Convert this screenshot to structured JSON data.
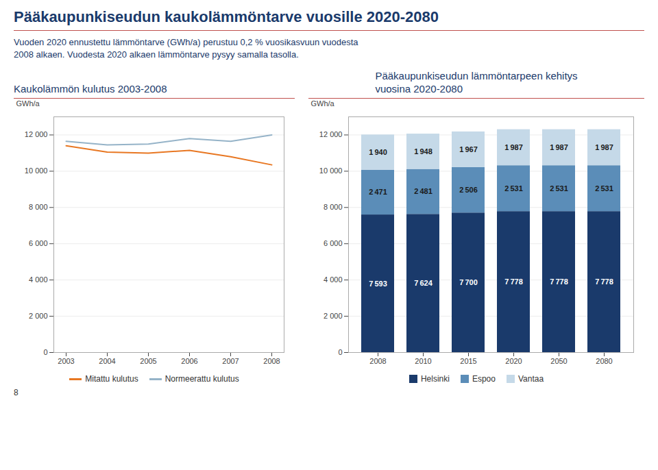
{
  "title": "Pääkaupunkiseudun kaukolämmöntarve vuosille 2020-2080",
  "subtitle": "Vuoden 2020 ennustettu lämmöntarve (GWh/a) perustuu 0,2 % vuosikasvuun vuodesta\n2008 alkaen. Vuodesta 2020 alkaen lämmöntarve pysyy samalla tasolla.",
  "annotations": [
    "8"
  ],
  "chart_data": [
    {
      "type": "line",
      "title": "Kaukolämmön kulutus 2003-2008",
      "ylabel": "GWh/a",
      "x": [
        2003,
        2004,
        2005,
        2006,
        2007,
        2008
      ],
      "xlim": [
        2002.7,
        2008.3
      ],
      "xticks": [
        2003,
        2004,
        2005,
        2006,
        2007,
        2008
      ],
      "ylim": [
        0,
        13000
      ],
      "yticks": [
        0,
        {
          "value": 2000,
          "label": "2 000"
        },
        {
          "value": 4000,
          "label": "4 000"
        },
        {
          "value": 6000,
          "label": "6 000"
        },
        {
          "value": 8000,
          "label": "8 000"
        },
        {
          "value": 10000,
          "label": "10 000"
        },
        {
          "value": 12000,
          "label": "12 000"
        }
      ],
      "grid": true,
      "legend": "bottom",
      "series": [
        {
          "name": "Mitattu kulutus",
          "color": "#E87722",
          "values": [
            11400,
            11050,
            11000,
            11150,
            10800,
            10350
          ]
        },
        {
          "name": "Normeerattu kulutus",
          "color": "#95B3C8",
          "values": [
            11650,
            11450,
            11500,
            11800,
            11650,
            12000
          ]
        }
      ]
    },
    {
      "type": "bar",
      "title": "Pääkaupunkiseudun lämmöntarpeen kehitys\nvuosina 2020-2080",
      "ylabel": "GWh/a",
      "categories": [
        "2008",
        "2010",
        "2015",
        "2020",
        "2050",
        "2080"
      ],
      "ylim": [
        0,
        13000
      ],
      "yticks": [
        0,
        {
          "value": 2000,
          "label": "2 000"
        },
        {
          "value": 4000,
          "label": "4 000"
        },
        {
          "value": 6000,
          "label": "6 000"
        },
        {
          "value": 8000,
          "label": "8 000"
        },
        {
          "value": 10000,
          "label": "10 000"
        },
        {
          "value": 12000,
          "label": "12 000"
        }
      ],
      "grid": true,
      "stacked": true,
      "data_labels": true,
      "legend": "bottom",
      "series": [
        {
          "name": "Helsinki",
          "color": "#1A3A6B",
          "values": [
            7593,
            7624,
            7700,
            7778,
            7778,
            7778
          ],
          "value_labels": [
            "7 593",
            "7 624",
            "7 700",
            "7 778",
            "7 778",
            "7 778"
          ]
        },
        {
          "name": "Espoo",
          "color": "#5B8DB8",
          "values": [
            2471,
            2481,
            2506,
            2531,
            2531,
            2531
          ],
          "value_labels": [
            "2 471",
            "2 481",
            "2 506",
            "2 531",
            "2 531",
            "2 531"
          ]
        },
        {
          "name": "Vantaa",
          "color": "#C5D9E8",
          "values": [
            1940,
            1948,
            1967,
            1987,
            1987,
            1987
          ],
          "value_labels": [
            "1 940",
            "1 948",
            "1 967",
            "1 987",
            "1 987",
            "1 987"
          ]
        }
      ]
    }
  ]
}
